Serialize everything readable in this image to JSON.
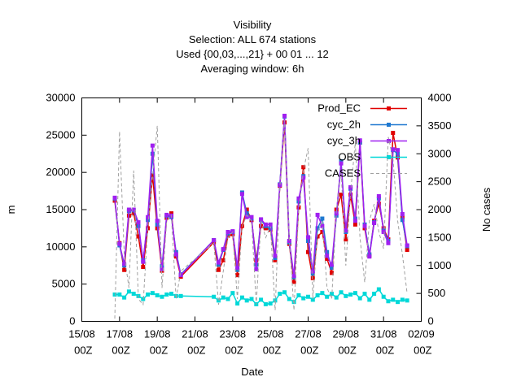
{
  "chart_data": {
    "type": "line",
    "title": [
      "Visibility",
      "Selection: ALL    674 stations",
      "Used {00,03,...,21} + 00 01 ... 12",
      "Averaging window:  6h"
    ],
    "xlabel": "Date",
    "ylabel": "m",
    "y2label": "No cases",
    "x": [
      "16/08 18Z",
      "17/08 00Z",
      "17/08 06Z",
      "17/08 12Z",
      "17/08 18Z",
      "18/08 00Z",
      "18/08 06Z",
      "18/08 12Z",
      "18/08 18Z",
      "19/08 00Z",
      "19/08 06Z",
      "19/08 12Z",
      "19/08 18Z",
      "20/08 00Z",
      "20/08 06Z",
      "22/08 00Z",
      "22/08 06Z",
      "22/08 12Z",
      "22/08 18Z",
      "23/08 00Z",
      "23/08 06Z",
      "23/08 12Z",
      "23/08 18Z",
      "24/08 00Z",
      "24/08 06Z",
      "24/08 12Z",
      "24/08 18Z",
      "25/08 00Z",
      "25/08 06Z",
      "25/08 12Z",
      "25/08 18Z",
      "26/08 00Z",
      "26/08 06Z",
      "26/08 12Z",
      "26/08 18Z",
      "27/08 00Z",
      "27/08 06Z",
      "27/08 12Z",
      "27/08 18Z",
      "28/08 00Z",
      "28/08 06Z",
      "28/08 12Z",
      "28/08 18Z",
      "29/08 00Z",
      "29/08 06Z",
      "29/08 12Z",
      "29/08 18Z",
      "30/08 00Z",
      "30/08 06Z",
      "30/08 12Z",
      "30/08 18Z",
      "31/08 00Z",
      "31/08 06Z",
      "31/08 12Z",
      "31/08 18Z",
      "01/09 00Z",
      "01/09 06Z"
    ],
    "xlim": [
      "15/08 00Z",
      "02/09 00Z"
    ],
    "xticks": [
      "15/08 00Z",
      "17/08 00Z",
      "19/08 00Z",
      "21/08 00Z",
      "23/08 00Z",
      "25/08 00Z",
      "27/08 00Z",
      "29/08 00Z",
      "31/08 00Z",
      "02/09 00Z"
    ],
    "ylim": [
      0,
      30000
    ],
    "yticks": [
      0,
      5000,
      10000,
      15000,
      20000,
      25000,
      30000
    ],
    "y2lim": [
      0,
      4000
    ],
    "y2ticks": [
      0,
      500,
      1000,
      1500,
      2000,
      2500,
      3000,
      3500,
      4000
    ],
    "legend": "top-right",
    "series": [
      {
        "name": "Prod_EC",
        "color": "#e00000",
        "values": [
          16200,
          10500,
          6900,
          14200,
          14500,
          11400,
          7300,
          12500,
          19600,
          12500,
          6800,
          13900,
          14500,
          8700,
          6000,
          10600,
          6900,
          8200,
          11500,
          11700,
          6200,
          12800,
          15000,
          13600,
          8200,
          12800,
          12500,
          12300,
          8200,
          18200,
          26700,
          10400,
          5300,
          15300,
          20700,
          9300,
          5800,
          11400,
          12000,
          8400,
          6500,
          15000,
          17000,
          11000,
          17000,
          13000,
          24000,
          12500,
          8800,
          13500,
          15800,
          12500,
          11000,
          25300,
          22000,
          14000,
          9600
        ]
      },
      {
        "name": "cyc_2h",
        "color": "#1f78d0",
        "values": [
          16500,
          10200,
          7500,
          14800,
          14900,
          12800,
          8200,
          13600,
          22500,
          13000,
          7400,
          14200,
          14000,
          9300,
          6300,
          10900,
          7600,
          9600,
          11800,
          12000,
          6900,
          17300,
          14500,
          13800,
          7600,
          13600,
          12800,
          12500,
          8500,
          18400,
          27500,
          10600,
          5900,
          16100,
          19500,
          10800,
          6400,
          12500,
          13800,
          9300,
          7200,
          14200,
          21500,
          12000,
          17800,
          13800,
          24000,
          13000,
          9000,
          13300,
          16500,
          12200,
          10800,
          23000,
          22500,
          13600,
          10100
        ]
      },
      {
        "name": "cyc_3h",
        "color": "#a020f0",
        "values": [
          16600,
          10400,
          7700,
          15000,
          15000,
          13300,
          8000,
          14000,
          23600,
          13500,
          7000,
          14300,
          14200,
          9000,
          6200,
          10900,
          7900,
          9700,
          12000,
          12100,
          7200,
          17100,
          14000,
          14000,
          7000,
          13700,
          13000,
          13000,
          8800,
          18300,
          27600,
          10800,
          6100,
          16500,
          19300,
          11300,
          6700,
          14300,
          12800,
          8800,
          7600,
          14500,
          21200,
          12200,
          18000,
          13500,
          24300,
          12800,
          8700,
          13200,
          16800,
          12000,
          10500,
          23100,
          23000,
          14400,
          10200
        ]
      },
      {
        "name": "OBS",
        "color": "#00d8d8",
        "values": [
          3600,
          3600,
          3200,
          4000,
          3700,
          3400,
          3000,
          3600,
          3800,
          3500,
          3300,
          3600,
          3700,
          3400,
          3400,
          3300,
          2800,
          3200,
          3000,
          3800,
          2400,
          3200,
          2800,
          3000,
          2300,
          2900,
          2300,
          2400,
          2800,
          3700,
          3900,
          3000,
          2600,
          3500,
          3100,
          3300,
          2900,
          3500,
          3800,
          3300,
          3700,
          3200,
          3900,
          3400,
          3600,
          3800,
          3100,
          3700,
          2900,
          3700,
          4300,
          3300,
          2700,
          2900,
          2600,
          2900,
          2800
        ]
      },
      {
        "name": "CASES",
        "color": "#a0a0a0",
        "axis": "y2",
        "dashed": true,
        "values": [
          50,
          3400,
          1200,
          600,
          2700,
          400,
          300,
          1700,
          2600,
          3500,
          600,
          1800,
          1900,
          400,
          900,
          1400,
          300,
          900,
          1500,
          1600,
          400,
          1700,
          1900,
          1800,
          300,
          1800,
          1500,
          1700,
          200,
          2400,
          3600,
          1500,
          200,
          2000,
          2700,
          3100,
          400,
          1600,
          1800,
          600,
          400,
          2000,
          2700,
          1000,
          2300,
          3200,
          1500,
          700,
          1800,
          2100,
          1600,
          1300,
          3300,
          2900,
          1800,
          1200,
          500
        ]
      }
    ]
  }
}
